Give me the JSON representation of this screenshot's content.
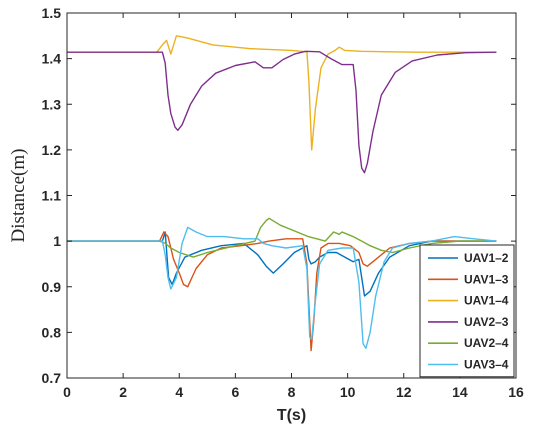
{
  "chart_data": {
    "type": "line",
    "title": "",
    "xlabel": "T(s)",
    "ylabel": "Distance(m)",
    "xlim": [
      0,
      16
    ],
    "ylim": [
      0.7,
      1.5
    ],
    "xticks": [
      0,
      2,
      4,
      6,
      8,
      10,
      12,
      14,
      16
    ],
    "yticks": [
      0.7,
      0.8,
      0.9,
      1,
      1.1,
      1.2,
      1.3,
      1.4,
      1.5
    ],
    "xtick_labels": [
      "0",
      "2",
      "4",
      "6",
      "8",
      "10",
      "12",
      "14",
      "16"
    ],
    "ytick_labels": [
      "0.7",
      "0.8",
      "0.9",
      "1",
      "1.1",
      "1.2",
      "1.3",
      "1.4",
      "1.5"
    ],
    "grid": false,
    "legend_position": "bottom-right",
    "series": [
      {
        "name": "UAV1–2",
        "color": "#0072BD",
        "x": [
          0,
          3.4,
          3.5,
          3.62,
          3.75,
          3.9,
          4.2,
          4.8,
          5.5,
          6.3,
          6.8,
          7.1,
          7.35,
          7.7,
          8.1,
          8.55,
          8.62,
          8.7,
          8.85,
          9.0,
          9.3,
          9.6,
          9.9,
          10.2,
          10.4,
          10.6,
          10.8,
          11.1,
          11.5,
          12.2,
          13.0,
          14.0,
          15.3
        ],
        "y": [
          1.0,
          1.0,
          1.02,
          0.92,
          0.905,
          0.93,
          0.965,
          0.98,
          0.99,
          0.995,
          0.97,
          0.945,
          0.93,
          0.95,
          0.975,
          0.99,
          0.96,
          0.95,
          0.955,
          0.965,
          0.975,
          0.975,
          0.965,
          0.955,
          0.96,
          0.88,
          0.89,
          0.93,
          0.965,
          0.99,
          1.0,
          1.0,
          1.0
        ]
      },
      {
        "name": "UAV1–3",
        "color": "#D95319",
        "x": [
          0,
          3.3,
          3.45,
          3.6,
          3.8,
          4.0,
          4.15,
          4.3,
          4.6,
          5.0,
          5.5,
          6.2,
          6.8,
          7.2,
          7.8,
          8.4,
          8.55,
          8.7,
          8.8,
          8.9,
          9.05,
          9.3,
          9.7,
          10.1,
          10.4,
          10.55,
          10.7,
          11.0,
          11.5,
          12.2,
          13.0,
          14.0,
          15.3
        ],
        "y": [
          1.0,
          1.0,
          1.02,
          1.01,
          0.96,
          0.93,
          0.905,
          0.9,
          0.94,
          0.97,
          0.985,
          0.99,
          0.995,
          1.0,
          1.005,
          1.005,
          0.95,
          0.76,
          0.83,
          0.93,
          0.985,
          0.995,
          0.995,
          0.99,
          0.975,
          0.95,
          0.945,
          0.96,
          0.985,
          0.995,
          1.0,
          1.0,
          1.0
        ]
      },
      {
        "name": "UAV1–4",
        "color": "#EDB120",
        "x": [
          0,
          3.2,
          3.4,
          3.55,
          3.7,
          3.9,
          4.3,
          5.2,
          6.5,
          8.0,
          8.55,
          8.62,
          8.72,
          8.85,
          9.05,
          9.3,
          9.55,
          9.7,
          9.9,
          10.5,
          11.5,
          12.5,
          14.0,
          15.3
        ],
        "y": [
          1.414,
          1.414,
          1.43,
          1.44,
          1.41,
          1.45,
          1.445,
          1.43,
          1.422,
          1.418,
          1.415,
          1.35,
          1.2,
          1.29,
          1.38,
          1.41,
          1.418,
          1.425,
          1.418,
          1.416,
          1.415,
          1.414,
          1.414,
          1.414
        ]
      },
      {
        "name": "UAV2–3",
        "color": "#7E2F8E",
        "x": [
          0,
          3.4,
          3.5,
          3.6,
          3.7,
          3.85,
          3.95,
          4.1,
          4.4,
          4.8,
          5.3,
          6.0,
          6.7,
          7.0,
          7.3,
          7.7,
          8.1,
          8.5,
          9.0,
          9.4,
          9.8,
          10.2,
          10.3,
          10.4,
          10.5,
          10.6,
          10.7,
          10.9,
          11.2,
          11.7,
          12.3,
          13.2,
          14.2,
          15.3
        ],
        "y": [
          1.414,
          1.414,
          1.39,
          1.32,
          1.28,
          1.25,
          1.243,
          1.255,
          1.3,
          1.34,
          1.368,
          1.385,
          1.393,
          1.38,
          1.38,
          1.398,
          1.41,
          1.416,
          1.415,
          1.4,
          1.387,
          1.387,
          1.33,
          1.21,
          1.16,
          1.15,
          1.17,
          1.24,
          1.32,
          1.37,
          1.395,
          1.408,
          1.413,
          1.414
        ]
      },
      {
        "name": "UAV2–4",
        "color": "#77AC30",
        "x": [
          0,
          3.3,
          3.5,
          3.7,
          4.0,
          4.5,
          5.0,
          6.0,
          6.7,
          6.9,
          7.1,
          7.2,
          7.6,
          8.2,
          8.6,
          9.2,
          9.5,
          9.7,
          9.8,
          10.0,
          10.2,
          10.5,
          10.8,
          11.2,
          11.6,
          12.2,
          13.0,
          14.0,
          15.3
        ],
        "y": [
          1.0,
          1.0,
          0.995,
          0.985,
          0.975,
          0.965,
          0.975,
          0.99,
          1.0,
          1.03,
          1.045,
          1.05,
          1.035,
          1.02,
          1.01,
          1.0,
          1.02,
          1.015,
          1.02,
          1.015,
          1.01,
          1.0,
          0.99,
          0.98,
          0.975,
          0.985,
          0.995,
          1.0,
          1.0
        ]
      },
      {
        "name": "UAV3–4",
        "color": "#4DBEEE",
        "x": [
          0,
          3.4,
          3.5,
          3.6,
          3.7,
          3.9,
          4.1,
          4.3,
          4.6,
          5.0,
          5.6,
          6.3,
          6.8,
          7.0,
          7.3,
          7.8,
          8.4,
          8.55,
          8.65,
          8.72,
          8.85,
          9.0,
          9.3,
          9.8,
          10.2,
          10.4,
          10.55,
          10.65,
          10.8,
          11.0,
          11.3,
          11.6,
          12.2,
          13.0,
          13.8,
          14.5,
          15.3
        ],
        "y": [
          1.0,
          1.0,
          0.97,
          0.92,
          0.895,
          0.92,
          0.995,
          1.03,
          1.02,
          1.01,
          1.01,
          1.005,
          1.005,
          0.995,
          0.99,
          0.985,
          0.99,
          0.94,
          0.79,
          0.785,
          0.87,
          0.95,
          0.98,
          0.985,
          0.985,
          0.91,
          0.775,
          0.765,
          0.8,
          0.88,
          0.955,
          0.985,
          0.995,
          1.0,
          1.01,
          1.005,
          1.0
        ]
      }
    ]
  }
}
